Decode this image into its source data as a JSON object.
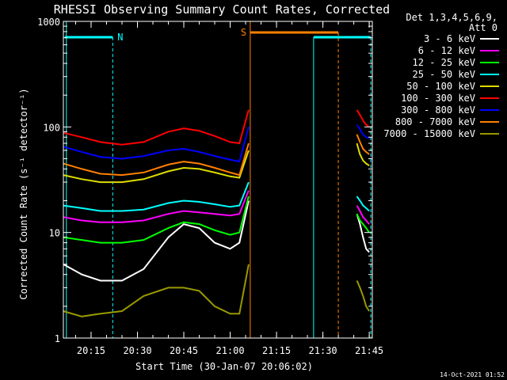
{
  "chart_data": {
    "type": "line",
    "title": "RHESSI Observing Summary Count Rates, Corrected",
    "xlabel": "Start Time (30-Jan-07 20:06:02)",
    "ylabel": "Corrected Count Rate (s⁻¹ detector⁻¹)",
    "y_scale": "log",
    "ylim": [
      1,
      1000
    ],
    "xlim": [
      "20:06:02",
      "21:46:00"
    ],
    "x_ticks": [
      "20:15",
      "20:30",
      "20:45",
      "21:00",
      "21:15",
      "21:30",
      "21:45"
    ],
    "y_ticks": [
      "1",
      "10",
      "100",
      "1000"
    ],
    "legend": {
      "position": "right",
      "header": [
        "Det 1,3,4,5,6,9,",
        "Att 0"
      ],
      "entries": [
        {
          "label": "3 - 6 keV",
          "color": "#ffffff"
        },
        {
          "label": "6 - 12 keV",
          "color": "#ff00ff"
        },
        {
          "label": "12 - 25 keV",
          "color": "#00ff00"
        },
        {
          "label": "25 - 50 keV",
          "color": "#00ffff"
        },
        {
          "label": "50 - 100 keV",
          "color": "#dddd00"
        },
        {
          "label": "100 - 300 keV",
          "color": "#ff0000"
        },
        {
          "label": "300 - 800 keV",
          "color": "#0000ff"
        },
        {
          "label": "800 - 7000 keV",
          "color": "#ff8000"
        },
        {
          "label": "7000 - 15000 keV",
          "color": "#999900"
        }
      ]
    },
    "series": [
      {
        "name": "3 - 6 keV",
        "color": "#ffffff",
        "x": [
          "20:06",
          "20:12",
          "20:18",
          "20:25",
          "20:32",
          "20:40",
          "20:45",
          "20:50",
          "20:55",
          "21:00",
          "21:03",
          "21:06",
          "21:41",
          "21:42",
          "21:43",
          "21:44",
          "21:45"
        ],
        "y": [
          5,
          4,
          3.5,
          3.5,
          4.5,
          9,
          12,
          11,
          8,
          7,
          8,
          20,
          15,
          12,
          9,
          7,
          6.5
        ]
      },
      {
        "name": "6 - 12 keV",
        "color": "#ff00ff",
        "x": [
          "20:06",
          "20:12",
          "20:18",
          "20:25",
          "20:32",
          "20:40",
          "20:45",
          "20:50",
          "20:55",
          "21:00",
          "21:03",
          "21:06",
          "21:41",
          "21:42",
          "21:43",
          "21:44",
          "21:45"
        ],
        "y": [
          14,
          13,
          12.5,
          12.5,
          13,
          15,
          16,
          15.5,
          15,
          14.5,
          15,
          25,
          18,
          16,
          14,
          13,
          12
        ]
      },
      {
        "name": "12 - 25 keV",
        "color": "#00ff00",
        "x": [
          "20:06",
          "20:12",
          "20:18",
          "20:25",
          "20:32",
          "20:40",
          "20:45",
          "20:50",
          "20:55",
          "21:00",
          "21:03",
          "21:06",
          "21:41",
          "21:42",
          "21:43",
          "21:44",
          "21:45"
        ],
        "y": [
          9,
          8.5,
          8,
          8,
          8.5,
          11,
          12.5,
          12,
          10.5,
          9.5,
          10,
          22,
          15,
          13,
          12,
          11,
          10
        ]
      },
      {
        "name": "25 - 50 keV",
        "color": "#00ffff",
        "x": [
          "20:06",
          "20:12",
          "20:18",
          "20:25",
          "20:32",
          "20:40",
          "20:45",
          "20:50",
          "20:55",
          "21:00",
          "21:03",
          "21:06",
          "21:41",
          "21:42",
          "21:43",
          "21:44",
          "21:45"
        ],
        "y": [
          18,
          17,
          16,
          16,
          16.5,
          19,
          20,
          19.5,
          18.5,
          17.5,
          18,
          30,
          22,
          20,
          18,
          17,
          16
        ]
      },
      {
        "name": "50 - 100 keV",
        "color": "#dddd00",
        "x": [
          "20:06",
          "20:12",
          "20:18",
          "20:25",
          "20:32",
          "20:40",
          "20:45",
          "20:50",
          "20:55",
          "21:00",
          "21:03",
          "21:06",
          "21:41",
          "21:42",
          "21:43",
          "21:44",
          "21:45"
        ],
        "y": [
          35,
          32,
          30,
          30,
          32,
          38,
          41,
          40,
          37,
          34,
          33,
          60,
          70,
          55,
          48,
          45,
          43
        ]
      },
      {
        "name": "100 - 300 keV",
        "color": "#ff0000",
        "x": [
          "20:06",
          "20:12",
          "20:18",
          "20:25",
          "20:32",
          "20:40",
          "20:45",
          "20:50",
          "20:55",
          "21:00",
          "21:03",
          "21:06",
          "21:41",
          "21:42",
          "21:43",
          "21:44",
          "21:45"
        ],
        "y": [
          88,
          80,
          72,
          68,
          72,
          90,
          97,
          92,
          82,
          72,
          70,
          145,
          145,
          130,
          115,
          105,
          100
        ]
      },
      {
        "name": "300 - 800 keV",
        "color": "#0000ff",
        "x": [
          "20:06",
          "20:12",
          "20:18",
          "20:25",
          "20:32",
          "20:40",
          "20:45",
          "20:50",
          "20:55",
          "21:00",
          "21:03",
          "21:06",
          "21:41",
          "21:42",
          "21:43",
          "21:44",
          "21:45"
        ],
        "y": [
          65,
          58,
          52,
          50,
          53,
          60,
          62,
          58,
          53,
          49,
          47,
          100,
          105,
          95,
          85,
          80,
          78
        ]
      },
      {
        "name": "800 - 7000 keV",
        "color": "#ff8000",
        "x": [
          "20:06",
          "20:12",
          "20:18",
          "20:25",
          "20:32",
          "20:40",
          "20:45",
          "20:50",
          "20:55",
          "21:00",
          "21:03",
          "21:06",
          "21:41",
          "21:42",
          "21:43",
          "21:44",
          "21:45"
        ],
        "y": [
          45,
          40,
          36,
          35,
          37,
          44,
          47,
          45,
          41,
          37,
          35,
          70,
          85,
          72,
          62,
          58,
          55
        ]
      },
      {
        "name": "7000 - 15000 keV",
        "color": "#999900",
        "x": [
          "20:06",
          "20:12",
          "20:18",
          "20:25",
          "20:32",
          "20:40",
          "20:45",
          "20:50",
          "20:55",
          "21:00",
          "21:03",
          "21:06",
          "21:41",
          "21:42",
          "21:43",
          "21:44",
          "21:45"
        ],
        "y": [
          1.8,
          1.6,
          1.7,
          1.8,
          2.5,
          3,
          3,
          2.8,
          2,
          1.7,
          1.7,
          5,
          3.5,
          3,
          2.5,
          2,
          1.8
        ]
      }
    ],
    "annotations": [
      {
        "label": "N",
        "color": "#00ffff"
      },
      {
        "label": "S",
        "color": "#ff8000"
      }
    ],
    "footer": "14-Oct-2021 01:52"
  }
}
